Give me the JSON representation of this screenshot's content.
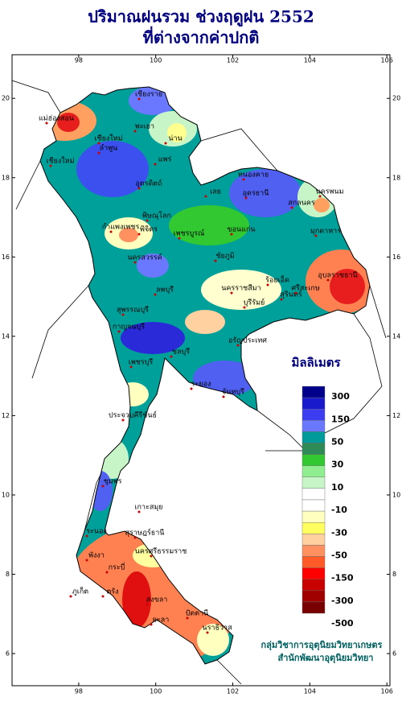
{
  "title": [
    "ปริมาณฝนรวม ช่วงฤดูฝน 2552",
    "ที่ต่างจากค่าปกติ"
  ],
  "map": {
    "xlim": [
      96.27,
      106.08
    ],
    "ylim": [
      5.19,
      21.1
    ],
    "xticks": [
      98,
      100,
      102,
      104,
      106
    ],
    "yticks": [
      6,
      8,
      10,
      12,
      14,
      16,
      18,
      20
    ]
  },
  "provinces": [
    "เชียงราย",
    "พะเยา",
    "เชียงใหม่",
    "ลำพูน",
    "น่าน",
    "แพร่",
    "แม่ฮ่องสอน",
    "เชียงใหม่",
    "อุตรดิตถ์",
    "พิษณุโลก",
    "กำแพงเพชร",
    "พิจิตร",
    "เพชรบูรณ์",
    "นครสวรรค์",
    "หนองคาย",
    "อุดรธานี",
    "สกลนคร",
    "นครพนม",
    "มุกดาหาร",
    "เลย",
    "ขอนแก่น",
    "ชัยภูมิ",
    "ลพบุรี",
    "สุพรรณบุรี",
    "กาญจนบุรี",
    "นครราชสีมา",
    "ร้อยเอ็ด",
    "สุรินทร์",
    "ศรีสะเกษ",
    "อุบลราชธานี",
    "บุรีรัมย์",
    "อรัญประเทศ",
    "ชลบุรี",
    "ระยอง",
    "จันทบุรี",
    "เพชรบุรี",
    "ประจวบคีรีขันธ์",
    "ชุมพร",
    "ระนอง",
    "เกาะสมุย",
    "สุราษฎร์ธานี",
    "นครศรีธรรมราช",
    "พังงา",
    "ภูเก็ต",
    "กระบี่",
    "ตรัง",
    "สงขลา",
    "ปัตตานี",
    "ยะลา",
    "นราธิวาส"
  ],
  "legend": {
    "title": "มิลลิเมตร",
    "labels": [
      300,
      150,
      50,
      30,
      10,
      -10,
      -30,
      -50,
      -150,
      -300,
      -500
    ],
    "colors": [
      "#00008b",
      "#1a1acd",
      "#3c3cf0",
      "#6a78ff",
      "#009a9a",
      "#2e8b57",
      "#32c832",
      "#90ee90",
      "#c8f5c8",
      "#ffffff",
      "#ffffff",
      "#ffffc0",
      "#ffff60",
      "#ffd0a0",
      "#ff9060",
      "#ff5a28",
      "#ff0000",
      "#c80000",
      "#a00000",
      "#780000"
    ]
  },
  "credit": [
    "กลุ่มวิชาการอุตุนิยมวิทยาเกษตร",
    "สำนักพัฒนาอุตุนิยมวิทยา"
  ]
}
